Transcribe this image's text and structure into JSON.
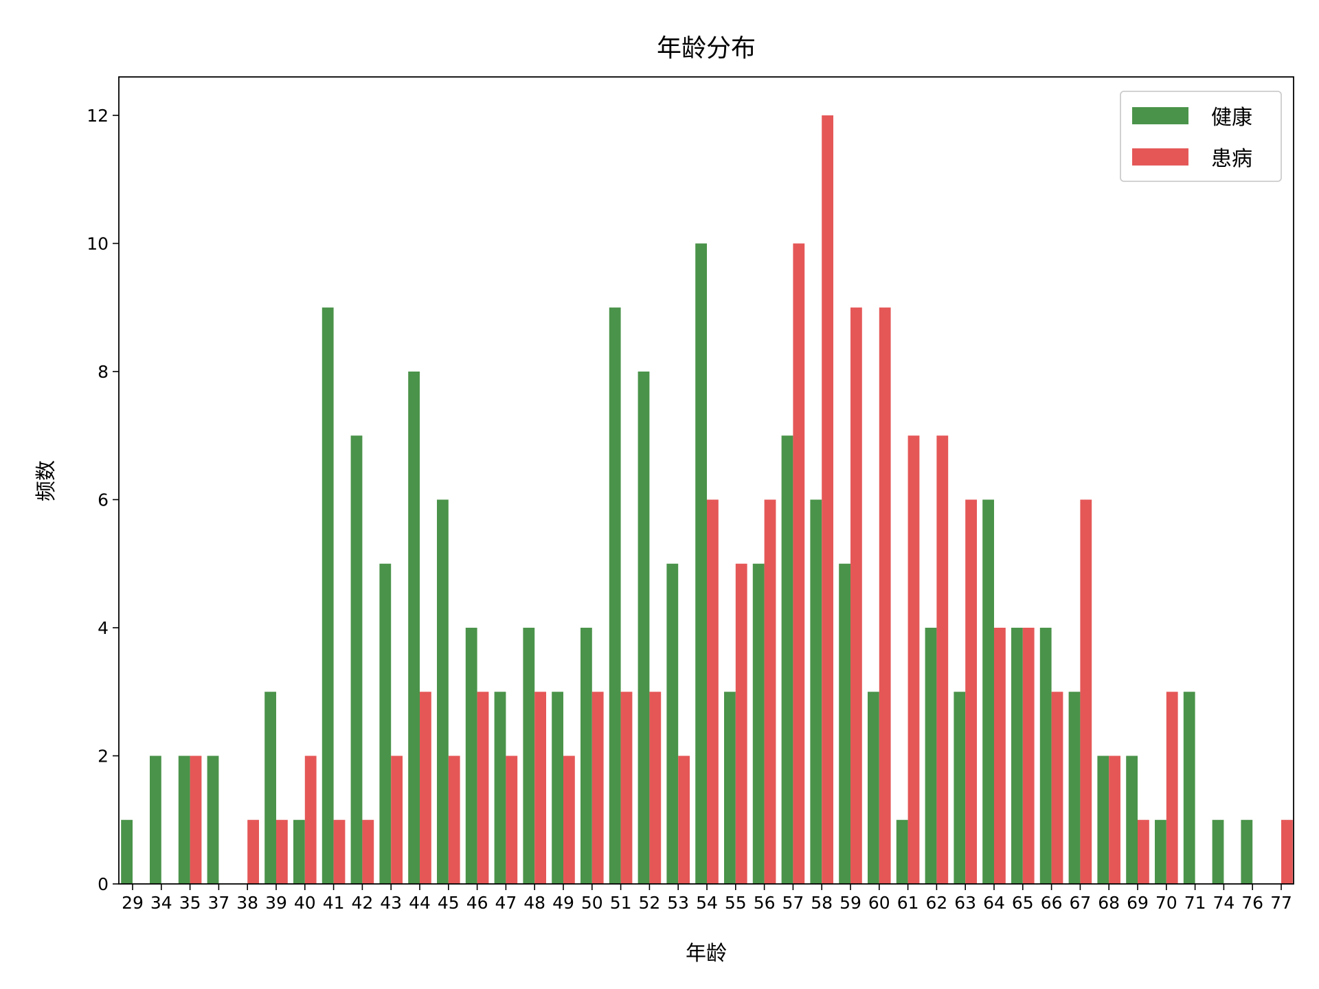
{
  "chart_data": {
    "type": "bar",
    "title": "年龄分布",
    "xlabel": "年龄",
    "ylabel": "频数",
    "categories": [
      "29",
      "34",
      "35",
      "37",
      "38",
      "39",
      "40",
      "41",
      "42",
      "43",
      "44",
      "45",
      "46",
      "47",
      "48",
      "49",
      "50",
      "51",
      "52",
      "53",
      "54",
      "55",
      "56",
      "57",
      "58",
      "59",
      "60",
      "61",
      "62",
      "63",
      "64",
      "65",
      "66",
      "67",
      "68",
      "69",
      "70",
      "71",
      "74",
      "76",
      "77"
    ],
    "series": [
      {
        "name": "健康",
        "color": "#4a934a",
        "values": [
          1,
          2,
          2,
          2,
          0,
          3,
          1,
          9,
          7,
          5,
          8,
          6,
          4,
          3,
          4,
          3,
          4,
          9,
          8,
          5,
          10,
          3,
          5,
          7,
          6,
          5,
          3,
          1,
          4,
          3,
          6,
          4,
          4,
          3,
          2,
          2,
          1,
          3,
          1,
          1,
          0
        ]
      },
      {
        "name": "患病",
        "color": "#e55757",
        "values": [
          0,
          0,
          2,
          0,
          1,
          1,
          2,
          1,
          1,
          2,
          3,
          2,
          3,
          2,
          3,
          2,
          3,
          3,
          3,
          2,
          6,
          5,
          6,
          10,
          12,
          9,
          9,
          7,
          7,
          6,
          4,
          4,
          3,
          6,
          2,
          1,
          3,
          0,
          0,
          0,
          1
        ]
      }
    ],
    "ylim": [
      0,
      12.6
    ],
    "yticks": [
      0,
      2,
      4,
      6,
      8,
      10,
      12
    ],
    "legend_position": "top-right",
    "grid": false
  }
}
